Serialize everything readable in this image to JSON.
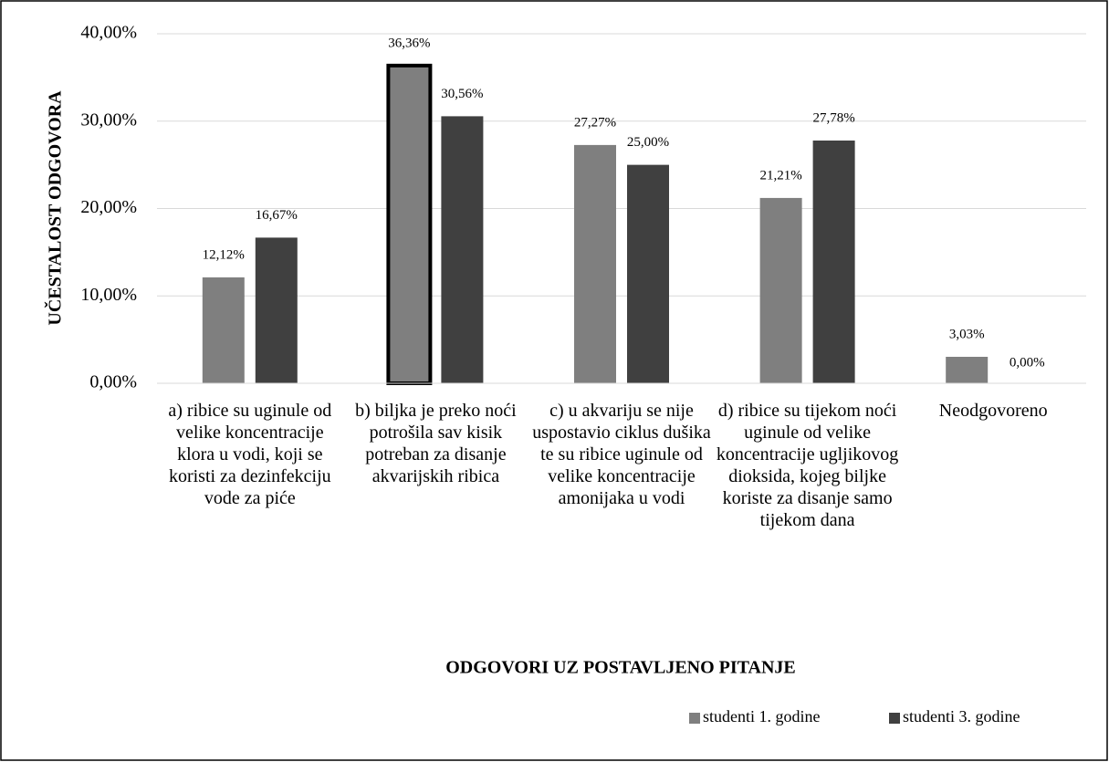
{
  "chart_data": {
    "type": "bar",
    "y_axis_label": "UČESTALOST ODGOVORA",
    "x_axis_label": "ODGOVORI UZ POSTAVLJENO PITANJE",
    "categories": [
      "a) ribice su uginule od velike koncentracije klora u vodi, koji se koristi za dezinfekciju vode za piće",
      "b) biljka je preko noći potrošila sav kisik potreban za disanje akvarijskih ribica",
      "c) u akvariju se nije uspostavio ciklus dušika te su ribice uginule od velike koncentracije amonijaka u vodi",
      "d) ribice su tijekom noći uginule od velike koncentracije ugljikovog dioksida, kojeg biljke koriste za disanje samo tijekom dana",
      "Neodgovoreno"
    ],
    "series": [
      {
        "name": "studenti 1. godine",
        "color": "#7f7f7f",
        "values": [
          12.12,
          36.36,
          27.27,
          21.21,
          3.03
        ],
        "value_labels": [
          "12,12%",
          "36,36%",
          "27,27%",
          "21,21%",
          "3,03%"
        ]
      },
      {
        "name": "studenti 3. godine",
        "color": "#404040",
        "values": [
          16.67,
          30.56,
          25.0,
          27.78,
          0.0
        ],
        "value_labels": [
          "16,67%",
          "30,56%",
          "25,00%",
          "27,78%",
          "0,00%"
        ]
      }
    ],
    "ylim": [
      0,
      40
    ],
    "yticks": [
      {
        "value": 0,
        "label": "0,00%"
      },
      {
        "value": 10,
        "label": "10,00%"
      },
      {
        "value": 20,
        "label": "20,00%"
      },
      {
        "value": 30,
        "label": "30,00%"
      },
      {
        "value": 40,
        "label": "40,00%"
      }
    ],
    "grid": true,
    "legend": "bottom-right",
    "highlight": {
      "series": 0,
      "index": 1
    }
  }
}
